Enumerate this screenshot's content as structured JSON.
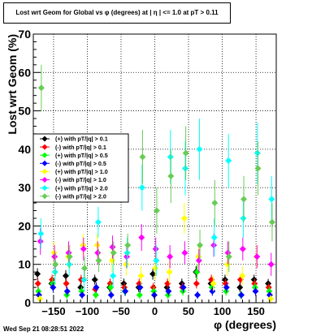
{
  "title": "Lost wrt Geom for Global vs φ (degrees) at |  η | <= 1.0 at pT > 0.11",
  "date_stamp": "Wed Sep 21 08:28:51 2022",
  "colors": {
    "s1": "#000000",
    "s2": "#ff0000",
    "s3": "#00ff00",
    "s4": "#0000ff",
    "s5": "#ffff00",
    "s6": "#ff00ff",
    "s7": "#00ffff",
    "s8": "#66cc55"
  },
  "chart_data": {
    "type": "scatter",
    "title": "Lost wrt Geom for Global vs φ (degrees) at |  η | <= 1.0 at pT > 0.11",
    "xlabel": "φ (degrees)",
    "ylabel": "Lost wrt Geom (%)",
    "xlim": [
      -180,
      180
    ],
    "ylim": [
      0,
      70
    ],
    "xticks": [
      -150,
      -100,
      -50,
      0,
      50,
      100,
      150
    ],
    "yticks": [
      0,
      10,
      20,
      30,
      40,
      50,
      60,
      70
    ],
    "grid": true,
    "legend_position": "left-middle",
    "series": [
      {
        "name": "(+) with pT/|q| > 0.1",
        "color": "#000000",
        "points": [
          [
            -171,
            7.5,
            1.5
          ],
          [
            -150,
            5,
            1.2
          ],
          [
            -129,
            7,
            1.5
          ],
          [
            -107,
            4,
            1.2
          ],
          [
            -86,
            6,
            1.3
          ],
          [
            -64,
            4,
            1.2
          ],
          [
            -43,
            5,
            1.3
          ],
          [
            -21,
            4,
            1.2
          ],
          [
            0,
            7.5,
            1.5
          ],
          [
            21,
            4,
            1.2
          ],
          [
            43,
            5,
            1.3
          ],
          [
            64,
            8,
            1.5
          ],
          [
            86,
            5,
            1.3
          ],
          [
            107,
            6,
            1.3
          ],
          [
            129,
            4,
            1.2
          ],
          [
            150,
            6,
            1.3
          ],
          [
            171,
            5,
            1.2
          ]
        ]
      },
      {
        "name": "(-) with pT/|q| > 0.1",
        "color": "#ff0000",
        "points": [
          [
            -171,
            5,
            1.3
          ],
          [
            -150,
            6,
            1.3
          ],
          [
            -129,
            5,
            1.3
          ],
          [
            -107,
            6,
            1.3
          ],
          [
            -86,
            3.5,
            1.2
          ],
          [
            -64,
            5,
            1.3
          ],
          [
            -43,
            4,
            1.2
          ],
          [
            -21,
            5,
            1.3
          ],
          [
            0,
            4,
            1.2
          ],
          [
            21,
            5,
            1.3
          ],
          [
            43,
            4,
            1.2
          ],
          [
            64,
            5,
            1.3
          ],
          [
            86,
            6,
            1.3
          ],
          [
            107,
            5,
            1.3
          ],
          [
            129,
            6,
            1.3
          ],
          [
            150,
            5,
            1.3
          ],
          [
            171,
            4,
            1.2
          ]
        ]
      },
      {
        "name": "(+) with pT/|q| > 0.5",
        "color": "#00ff00",
        "points": [
          [
            -171,
            3,
            1.2
          ],
          [
            -150,
            5,
            1.5
          ],
          [
            -129,
            2,
            1
          ],
          [
            -107,
            3,
            1.2
          ],
          [
            -86,
            2,
            1
          ],
          [
            -64,
            4,
            1.3
          ],
          [
            -43,
            3,
            1.2
          ],
          [
            -21,
            2,
            1
          ],
          [
            0,
            3,
            1.2
          ],
          [
            21,
            2,
            1
          ],
          [
            43,
            3,
            1.2
          ],
          [
            64,
            8,
            2
          ],
          [
            86,
            4,
            1.3
          ],
          [
            107,
            3,
            1.2
          ],
          [
            129,
            2,
            1
          ],
          [
            150,
            4,
            1.3
          ],
          [
            171,
            3,
            1.2
          ]
        ]
      },
      {
        "name": "(-) with pT/|q| > 0.5",
        "color": "#0000ff",
        "points": [
          [
            -171,
            2,
            1
          ],
          [
            -150,
            4,
            1.3
          ],
          [
            -129,
            3,
            1.2
          ],
          [
            -107,
            2,
            1
          ],
          [
            -86,
            4,
            1.3
          ],
          [
            -64,
            2,
            1
          ],
          [
            -43,
            3,
            1.2
          ],
          [
            -21,
            4,
            1.3
          ],
          [
            0,
            2,
            1
          ],
          [
            21,
            3,
            1.2
          ],
          [
            43,
            4,
            1.3
          ],
          [
            64,
            2,
            1
          ],
          [
            86,
            3,
            1.2
          ],
          [
            107,
            4,
            1.3
          ],
          [
            129,
            2,
            1
          ],
          [
            150,
            3,
            1.2
          ],
          [
            171,
            2,
            1
          ]
        ]
      },
      {
        "name": "(+) with pT/|q| > 1.0",
        "color": "#ffff00",
        "points": [
          [
            -171,
            1,
            1
          ],
          [
            -150,
            13,
            3
          ],
          [
            -129,
            12,
            3
          ],
          [
            -107,
            15,
            3
          ],
          [
            -86,
            15,
            3
          ],
          [
            -64,
            11,
            3
          ],
          [
            -43,
            10,
            3
          ],
          [
            -21,
            7,
            2.5
          ],
          [
            0,
            9,
            3
          ],
          [
            21,
            8,
            3
          ],
          [
            43,
            22,
            4
          ],
          [
            64,
            12,
            3
          ],
          [
            86,
            5,
            2
          ],
          [
            107,
            10,
            3
          ],
          [
            129,
            7,
            2.5
          ],
          [
            150,
            12,
            3
          ],
          [
            171,
            1,
            1
          ]
        ]
      },
      {
        "name": "(-) with pT/|q| > 1.0",
        "color": "#ff00ff",
        "points": [
          [
            -171,
            16,
            3.5
          ],
          [
            -150,
            12,
            3
          ],
          [
            -129,
            13,
            3
          ],
          [
            -107,
            14,
            3
          ],
          [
            -86,
            13,
            3
          ],
          [
            -64,
            14.5,
            3
          ],
          [
            -43,
            12,
            3
          ],
          [
            -21,
            17,
            3.5
          ],
          [
            0,
            14,
            3
          ],
          [
            21,
            12,
            3
          ],
          [
            43,
            13,
            3
          ],
          [
            64,
            11,
            3
          ],
          [
            86,
            15,
            3
          ],
          [
            107,
            13,
            3
          ],
          [
            129,
            14,
            3
          ],
          [
            150,
            12,
            3
          ],
          [
            171,
            10,
            3
          ]
        ]
      },
      {
        "name": "(+) with pT/|q| > 2.0",
        "color": "#00ffff",
        "points": [
          [
            -171,
            18,
            4
          ],
          [
            -150,
            8,
            3
          ],
          [
            -129,
            10,
            3
          ],
          [
            -107,
            6,
            3
          ],
          [
            -86,
            21,
            4
          ],
          [
            -64,
            7,
            3
          ],
          [
            -43,
            13,
            4
          ],
          [
            -21,
            30,
            6
          ],
          [
            0,
            11,
            4
          ],
          [
            21,
            38,
            7
          ],
          [
            43,
            35,
            7
          ],
          [
            64,
            40,
            8
          ],
          [
            86,
            17,
            5
          ],
          [
            107,
            37,
            7
          ],
          [
            129,
            22,
            5
          ],
          [
            150,
            39,
            8
          ],
          [
            171,
            27,
            6
          ]
        ]
      },
      {
        "name": "(-) with pT/|q| > 2.0",
        "color": "#66cc55",
        "points": [
          [
            -171,
            56,
            6
          ],
          [
            -150,
            10,
            3
          ],
          [
            -129,
            12,
            3
          ],
          [
            -107,
            9,
            3
          ],
          [
            -86,
            11,
            3
          ],
          [
            -64,
            13,
            3
          ],
          [
            -43,
            15,
            3
          ],
          [
            -21,
            38,
            7
          ],
          [
            0,
            24,
            6
          ],
          [
            21,
            33,
            7
          ],
          [
            43,
            39,
            7
          ],
          [
            64,
            15,
            4
          ],
          [
            86,
            26,
            6
          ],
          [
            107,
            12,
            4
          ],
          [
            129,
            27,
            6
          ],
          [
            150,
            35,
            7
          ],
          [
            171,
            21,
            5
          ]
        ]
      }
    ]
  }
}
